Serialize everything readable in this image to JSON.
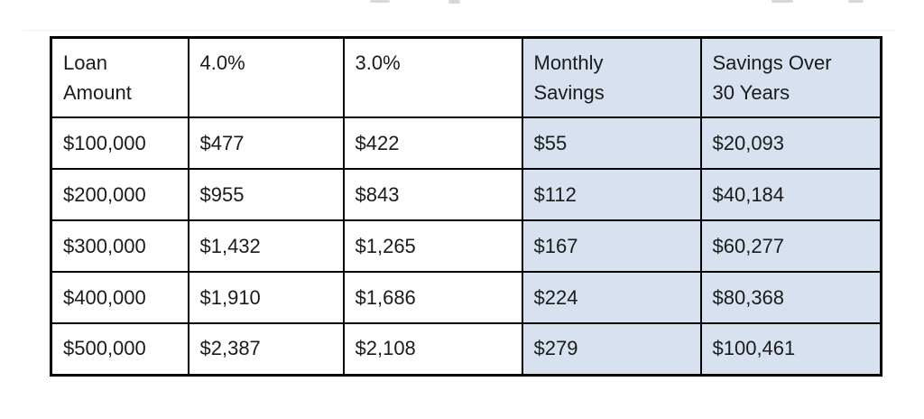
{
  "colors": {
    "highlight_fill": "#d7e1ef",
    "border": "#000000",
    "text": "#1b1b1b",
    "page_background": "#ffffff"
  },
  "chart_data": {
    "type": "table",
    "columns": [
      {
        "label": "Loan Amount",
        "lines": [
          "Loan",
          "Amount"
        ],
        "highlighted": false
      },
      {
        "label": "4.0%",
        "lines": [
          "4.0%"
        ],
        "highlighted": false
      },
      {
        "label": "3.0%",
        "lines": [
          "3.0%"
        ],
        "highlighted": false
      },
      {
        "label": "Monthly Savings",
        "lines": [
          "Monthly",
          "Savings"
        ],
        "highlighted": true
      },
      {
        "label": "Savings Over 30 Years",
        "lines": [
          "Savings Over",
          "30 Years"
        ],
        "highlighted": true
      }
    ],
    "rows": [
      [
        "$100,000",
        "$477",
        "$422",
        "$55",
        "$20,093"
      ],
      [
        "$200,000",
        "$955",
        "$843",
        "$112",
        "$40,184"
      ],
      [
        "$300,000",
        "$1,432",
        "$1,265",
        "$167",
        "$60,277"
      ],
      [
        "$400,000",
        "$1,910",
        "$1,686",
        "$224",
        "$80,368"
      ],
      [
        "$500,000",
        "$2,387",
        "$2,108",
        "$279",
        "$100,461"
      ]
    ]
  }
}
